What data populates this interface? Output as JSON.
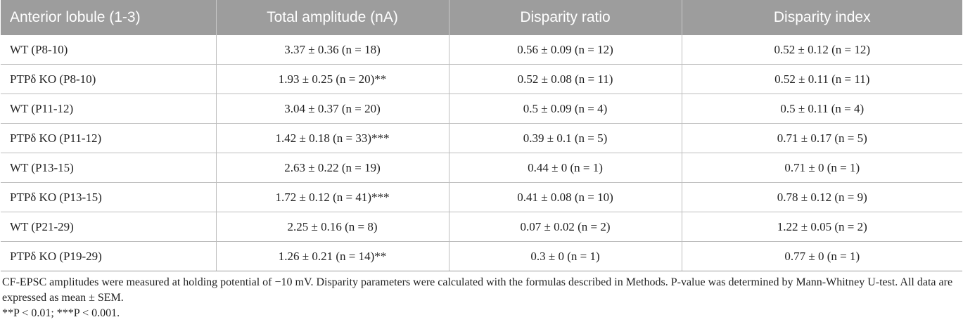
{
  "table": {
    "headers": [
      "Anterior lobule (1-3)",
      "Total amplitude (nA)",
      "Disparity ratio",
      "Disparity index"
    ],
    "rows": [
      [
        "WT (P8-10)",
        "3.37 ± 0.36 (n = 18)",
        "0.56 ± 0.09 (n = 12)",
        "0.52 ± 0.12 (n = 12)"
      ],
      [
        "PTPδ KO (P8-10)",
        "1.93 ± 0.25 (n = 20)**",
        "0.52 ± 0.08 (n = 11)",
        "0.52 ± 0.11 (n = 11)"
      ],
      [
        "WT (P11-12)",
        "3.04 ± 0.37 (n = 20)",
        "0.5 ± 0.09 (n = 4)",
        "0.5 ± 0.11 (n = 4)"
      ],
      [
        "PTPδ KO (P11-12)",
        "1.42 ± 0.18 (n = 33)***",
        "0.39 ± 0.1 (n = 5)",
        "0.71 ± 0.17 (n = 5)"
      ],
      [
        "WT (P13-15)",
        "2.63 ± 0.22 (n = 19)",
        "0.44 ± 0 (n = 1)",
        "0.71 ± 0 (n = 1)"
      ],
      [
        "PTPδ KO (P13-15)",
        "1.72 ± 0.12 (n = 41)***",
        "0.41 ± 0.08 (n = 10)",
        "0.78 ± 0.12 (n = 9)"
      ],
      [
        "WT (P21-29)",
        "2.25 ± 0.16 (n = 8)",
        "0.07 ± 0.02 (n = 2)",
        "1.22 ± 0.05 (n = 2)"
      ],
      [
        "PTPδ KO (P19-29)",
        "1.26 ± 0.21 (n = 14)**",
        "0.3 ± 0 (n = 1)",
        "0.77 ± 0 (n = 1)"
      ]
    ]
  },
  "footnotes": {
    "line1": "CF-EPSC amplitudes were measured at holding potential of −10 mV. Disparity parameters were calculated with the formulas described in Methods. P-value was determined by Mann-Whitney U-test. All data are expressed as mean ± SEM.",
    "line2": "**P < 0.01; ***P < 0.001."
  },
  "colors": {
    "header_bg": "#9d9d9d",
    "header_text": "#ffffff",
    "body_text": "#222222",
    "grid": "#bdbdbd"
  }
}
